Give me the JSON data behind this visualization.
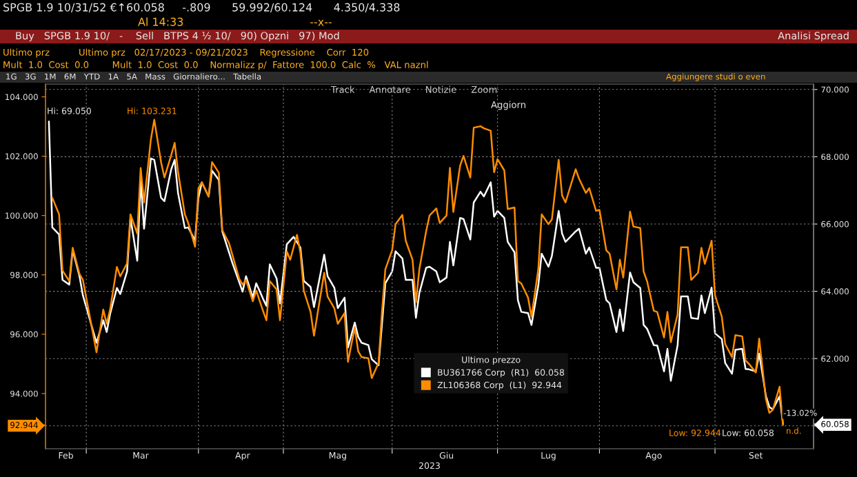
{
  "chart_data": {
    "type": "line",
    "xlabel": "2023",
    "legend_title": "Ultimo prezzo",
    "legend": "bottom",
    "grid": true,
    "xlim": [
      "2023-02-16",
      "2023-09-30"
    ],
    "xticks": [
      {
        "value": "2023-02-28",
        "label": null
      },
      {
        "value": "2023-04-02",
        "label": null
      },
      {
        "value": "2023-04-27",
        "label": null
      },
      {
        "value": "2023-05-29",
        "label": null
      },
      {
        "value": "2023-06-29",
        "label": null
      },
      {
        "value": "2023-07-29",
        "label": null
      },
      {
        "value": "2023-09-01",
        "label": null
      },
      {
        "value": "2023-02-22",
        "label": "Feb"
      },
      {
        "value": "2023-03-16",
        "label": "Mar"
      },
      {
        "value": "2023-04-15",
        "label": "Apr"
      },
      {
        "value": "2023-05-13",
        "label": "Mag"
      },
      {
        "value": "2023-06-14",
        "label": "Giu"
      },
      {
        "value": "2023-07-14",
        "label": "Lug"
      },
      {
        "value": "2023-08-14",
        "label": "Ago"
      },
      {
        "value": "2023-09-13",
        "label": "Set"
      }
    ],
    "ylim": [
      92.14,
      104.43
    ],
    "yticks": [
      {
        "value": 104,
        "label": "104.000"
      },
      {
        "value": 102,
        "label": "102.000"
      },
      {
        "value": 100,
        "label": "100.000"
      },
      {
        "value": 98,
        "label": "98.000"
      },
      {
        "value": 96,
        "label": "96.000"
      },
      {
        "value": 94,
        "label": "94.000"
      },
      {
        "value": 92.944,
        "label": "92.944"
      }
    ],
    "y2lim": [
      59.32,
      70.16
    ],
    "y2ticks": [
      {
        "value": 70,
        "label": "70.000"
      },
      {
        "value": 68,
        "label": "68.000"
      },
      {
        "value": 66,
        "label": "66.000"
      },
      {
        "value": 64,
        "label": "64.000"
      },
      {
        "value": 62,
        "label": "62.000"
      },
      {
        "value": 60,
        "label": null
      },
      {
        "value": 60.058,
        "label": "60.058"
      }
    ],
    "annotations": [
      "SPGB 1.9 10/31/52 €↑60.058     -.809      59.992/60.124      4.350/4.338",
      "Al 14:33                                    --x--",
      "Buy   SPGB 1.9 10/   -    Sell   BTPS 4 ½ 10/   90) Opzni   97) Mod",
      "Analisi Spread",
      "Ultimo prz          Ultimo prz   02/17/2023 - 09/21/2023    Regressione    Corr  120",
      "Mult  1.0  Cost  0.0        Mult  1.0  Cost  0.0    Normalizz p/  Fattore  100.0  Calc  %   VAL naznl",
      "1G   3G   1M   6M   YTD   1A   5A   Mass   Giornaliero...   Tabella",
      "Aggiungere studi o even",
      "Track     Annotare     Notizie     Zoom",
      "Aggiorn",
      "-13.02%",
      "n.d.",
      "Hi: 69.050",
      "Hi: 103.231",
      "Low: 92.944",
      "Low: 60.058"
    ],
    "series": [
      {
        "name": "BU361766 Corp  (R1)  60.058",
        "color": "#ffffff",
        "axis": "y2",
        "x": [
          "2023-02-17",
          "2023-02-18",
          "2023-02-20",
          "2023-02-21",
          "2023-02-23",
          "2023-02-24",
          "2023-02-26",
          "2023-02-27",
          "2023-03-03",
          "2023-03-05",
          "2023-03-06",
          "2023-03-07",
          "2023-03-09",
          "2023-03-10",
          "2023-03-12",
          "2023-03-13",
          "2023-03-15",
          "2023-03-16",
          "2023-03-17",
          "2023-03-19",
          "2023-03-20",
          "2023-03-22",
          "2023-03-23",
          "2023-03-25",
          "2023-03-26",
          "2023-03-27",
          "2023-03-29",
          "2023-03-30",
          "2023-04-01",
          "2023-04-02",
          "2023-04-03",
          "2023-04-05",
          "2023-04-06",
          "2023-04-08",
          "2023-04-09",
          "2023-04-11",
          "2023-04-12",
          "2023-04-14",
          "2023-04-15",
          "2023-04-16",
          "2023-04-18",
          "2023-04-19",
          "2023-04-21",
          "2023-04-22",
          "2023-04-23",
          "2023-04-25",
          "2023-04-26",
          "2023-04-28",
          "2023-04-30",
          "2023-05-02",
          "2023-05-03",
          "2023-05-05",
          "2023-05-06",
          "2023-05-09",
          "2023-05-10",
          "2023-05-12",
          "2023-05-13",
          "2023-05-15",
          "2023-05-16",
          "2023-05-18",
          "2023-05-19",
          "2023-05-20",
          "2023-05-22",
          "2023-05-23",
          "2023-05-25",
          "2023-05-27",
          "2023-05-29",
          "2023-05-30",
          "2023-06-01",
          "2023-06-02",
          "2023-06-04",
          "2023-06-05",
          "2023-06-06",
          "2023-06-08",
          "2023-06-09",
          "2023-06-11",
          "2023-06-12",
          "2023-06-14",
          "2023-06-15",
          "2023-06-16",
          "2023-06-18",
          "2023-06-19",
          "2023-06-21",
          "2023-06-22",
          "2023-06-24",
          "2023-06-25",
          "2023-06-27",
          "2023-06-28",
          "2023-06-29",
          "2023-07-01",
          "2023-07-02",
          "2023-07-04",
          "2023-07-05",
          "2023-07-06",
          "2023-07-08",
          "2023-07-09",
          "2023-07-11",
          "2023-07-12",
          "2023-07-14",
          "2023-07-15",
          "2023-07-17",
          "2023-07-18",
          "2023-07-19",
          "2023-07-22",
          "2023-07-23",
          "2023-07-25",
          "2023-07-26",
          "2023-07-28",
          "2023-07-29",
          "2023-07-31",
          "2023-08-01",
          "2023-08-03",
          "2023-08-04",
          "2023-08-05",
          "2023-08-07",
          "2023-08-08",
          "2023-08-10",
          "2023-08-11",
          "2023-08-12",
          "2023-08-14",
          "2023-08-15",
          "2023-08-17",
          "2023-08-18",
          "2023-08-19",
          "2023-08-21",
          "2023-08-22",
          "2023-08-24",
          "2023-08-25",
          "2023-08-27",
          "2023-08-28",
          "2023-08-29",
          "2023-08-31",
          "2023-09-01",
          "2023-09-03",
          "2023-09-04",
          "2023-09-06",
          "2023-09-07",
          "2023-09-09",
          "2023-09-10",
          "2023-09-11",
          "2023-09-13",
          "2023-09-14",
          "2023-09-16",
          "2023-09-17",
          "2023-09-18",
          "2023-09-20",
          "2023-09-21"
        ],
        "values": [
          69.05,
          65.9,
          65.69,
          64.34,
          64.2,
          65.23,
          64.45,
          63.88,
          62.47,
          63.14,
          62.79,
          63.32,
          64.1,
          63.92,
          64.59,
          66.18,
          64.91,
          67.31,
          65.86,
          67.95,
          67.91,
          66.78,
          66.68,
          67.63,
          67.91,
          66.92,
          65.88,
          65.9,
          65.51,
          66.78,
          67.24,
          66.82,
          67.59,
          67.31,
          65.79,
          65.16,
          64.84,
          64.27,
          63.99,
          64.45,
          63.81,
          64.24,
          63.78,
          63.57,
          64.8,
          64.38,
          63.64,
          65.4,
          65.62,
          65.3,
          64.31,
          64.13,
          63.53,
          65.09,
          64.45,
          64.1,
          63.5,
          63.81,
          62.33,
          63.07,
          62.65,
          62.47,
          62.4,
          61.98,
          61.8,
          64.24,
          64.59,
          65.19,
          64.98,
          64.34,
          64.34,
          63.21,
          63.95,
          64.7,
          64.73,
          64.59,
          64.27,
          64.41,
          65.47,
          64.77,
          66.18,
          66.15,
          65.54,
          66.64,
          66.96,
          66.82,
          67.24,
          66.22,
          66.39,
          66.18,
          65.47,
          65.16,
          63.74,
          63.39,
          63.35,
          63.0,
          64.17,
          65.12,
          64.73,
          65.05,
          66.39,
          65.72,
          65.47,
          65.78,
          65.86,
          65.12,
          65.3,
          64.7,
          64.7,
          63.74,
          63.64,
          62.79,
          63.46,
          62.82,
          64.56,
          64.27,
          64.1,
          63.0,
          62.89,
          62.4,
          62.39,
          61.62,
          62.29,
          61.34,
          62.4,
          63.85,
          63.85,
          63.21,
          63.18,
          63.88,
          63.35,
          64.11,
          62.75,
          62.58,
          61.87,
          61.55,
          62.26,
          62.29,
          61.69,
          61.68,
          61.62,
          62.15,
          60.88,
          60.56,
          60.49,
          60.88,
          60.06
        ]
      },
      {
        "name": "ZL106368 Corp  (L1)  92.944",
        "color": "#ff8c00",
        "x": [
          "2023-02-18",
          "2023-02-20",
          "2023-02-21",
          "2023-02-23",
          "2023-02-24",
          "2023-02-26",
          "2023-02-27",
          "2023-03-03",
          "2023-03-05",
          "2023-03-06",
          "2023-03-07",
          "2023-03-09",
          "2023-03-10",
          "2023-03-12",
          "2023-03-13",
          "2023-03-15",
          "2023-03-16",
          "2023-03-17",
          "2023-03-19",
          "2023-03-20",
          "2023-03-22",
          "2023-03-23",
          "2023-03-25",
          "2023-03-26",
          "2023-03-27",
          "2023-03-29",
          "2023-03-30",
          "2023-04-01",
          "2023-04-02",
          "2023-04-03",
          "2023-04-05",
          "2023-04-06",
          "2023-04-08",
          "2023-04-09",
          "2023-04-11",
          "2023-04-12",
          "2023-04-14",
          "2023-04-15",
          "2023-04-16",
          "2023-04-18",
          "2023-04-19",
          "2023-04-21",
          "2023-04-22",
          "2023-04-23",
          "2023-04-25",
          "2023-04-26",
          "2023-04-28",
          "2023-04-29",
          "2023-05-01",
          "2023-05-02",
          "2023-05-03",
          "2023-05-05",
          "2023-05-06",
          "2023-05-09",
          "2023-05-10",
          "2023-05-12",
          "2023-05-13",
          "2023-05-15",
          "2023-05-16",
          "2023-05-18",
          "2023-05-19",
          "2023-05-20",
          "2023-05-22",
          "2023-05-23",
          "2023-05-25",
          "2023-05-26",
          "2023-05-27",
          "2023-05-29",
          "2023-05-30",
          "2023-06-01",
          "2023-06-02",
          "2023-06-04",
          "2023-06-05",
          "2023-06-06",
          "2023-06-08",
          "2023-06-09",
          "2023-06-11",
          "2023-06-12",
          "2023-06-14",
          "2023-06-15",
          "2023-06-16",
          "2023-06-18",
          "2023-06-19",
          "2023-06-21",
          "2023-06-22",
          "2023-06-24",
          "2023-06-25",
          "2023-06-27",
          "2023-06-28",
          "2023-06-29",
          "2023-07-01",
          "2023-07-02",
          "2023-07-04",
          "2023-07-05",
          "2023-07-06",
          "2023-07-08",
          "2023-07-09",
          "2023-07-11",
          "2023-07-12",
          "2023-07-14",
          "2023-07-15",
          "2023-07-17",
          "2023-07-18",
          "2023-07-19",
          "2023-07-22",
          "2023-07-23",
          "2023-07-25",
          "2023-07-26",
          "2023-07-28",
          "2023-07-29",
          "2023-07-31",
          "2023-08-01",
          "2023-08-03",
          "2023-08-04",
          "2023-08-05",
          "2023-08-07",
          "2023-08-08",
          "2023-08-10",
          "2023-08-11",
          "2023-08-12",
          "2023-08-14",
          "2023-08-15",
          "2023-08-17",
          "2023-08-18",
          "2023-08-19",
          "2023-08-21",
          "2023-08-22",
          "2023-08-24",
          "2023-08-25",
          "2023-08-27",
          "2023-08-28",
          "2023-08-29",
          "2023-08-31",
          "2023-09-01",
          "2023-09-03",
          "2023-09-04",
          "2023-09-06",
          "2023-09-07",
          "2023-09-09",
          "2023-09-10",
          "2023-09-11",
          "2023-09-13",
          "2023-09-14",
          "2023-09-16",
          "2023-09-17",
          "2023-09-18",
          "2023-09-20",
          "2023-09-21"
        ],
        "values": [
          100.6,
          100.04,
          98.15,
          97.79,
          98.91,
          98.03,
          97.83,
          95.39,
          96.83,
          96.35,
          96.83,
          98.27,
          97.95,
          98.39,
          100.04,
          99.39,
          101.6,
          100.44,
          102.56,
          103.23,
          101.8,
          101.28,
          102.04,
          102.45,
          101.48,
          100.04,
          99.75,
          98.95,
          100.92,
          101.12,
          100.64,
          101.8,
          101.44,
          99.51,
          99.07,
          98.67,
          97.87,
          97.67,
          97.83,
          97.11,
          97.47,
          96.79,
          96.47,
          97.79,
          97.51,
          96.47,
          98.79,
          98.51,
          99.35,
          98.75,
          97.47,
          96.75,
          95.95,
          98.07,
          97.27,
          96.87,
          96.35,
          96.71,
          95.07,
          96.23,
          95.43,
          95.23,
          95.19,
          94.52,
          95.03,
          96.75,
          98.19,
          98.83,
          99.71,
          100.02,
          99.15,
          98.51,
          97.07,
          98.19,
          99.47,
          100.0,
          100.24,
          99.75,
          100.0,
          101.61,
          100.12,
          101.68,
          102.01,
          101.28,
          102.96,
          103.01,
          102.94,
          102.86,
          101.46,
          101.9,
          101.52,
          100.22,
          100.27,
          97.79,
          97.71,
          97.23,
          96.59,
          98.19,
          100.04,
          99.71,
          99.87,
          101.88,
          100.68,
          100.44,
          101.56,
          101.24,
          100.76,
          100.92,
          100.16,
          100.19,
          98.83,
          98.71,
          97.51,
          98.51,
          97.91,
          100.13,
          99.63,
          99.58,
          98.11,
          97.79,
          96.79,
          96.75,
          95.89,
          96.75,
          95.73,
          96.67,
          98.93,
          98.93,
          97.83,
          98.07,
          98.91,
          98.37,
          99.15,
          97.31,
          96.59,
          95.67,
          95.23,
          95.97,
          95.93,
          95.11,
          95.0,
          94.71,
          95.85,
          93.8,
          93.35,
          93.45,
          94.23,
          92.94
        ]
      }
    ]
  }
}
